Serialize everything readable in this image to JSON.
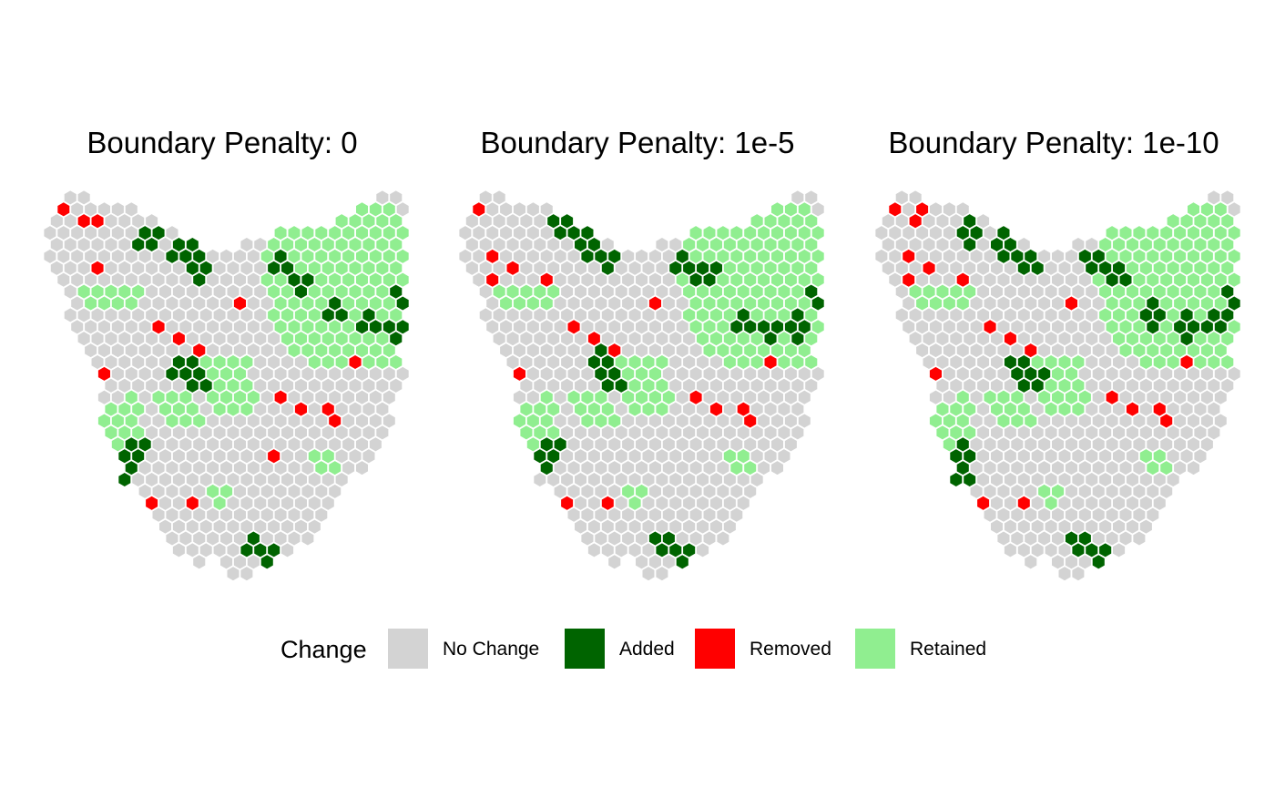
{
  "panels": [
    {
      "title": "Boundary Penalty: 0",
      "variant": 0
    },
    {
      "title": "Boundary Penalty: 1e-5",
      "variant": 1
    },
    {
      "title": "Boundary Penalty: 1e-10",
      "variant": 2
    }
  ],
  "legend": {
    "title": "Change",
    "items": [
      {
        "label": "No Change",
        "color": "#d3d3d3"
      },
      {
        "label": "Added",
        "color": "#006400"
      },
      {
        "label": "Removed",
        "color": "#ff0000"
      },
      {
        "label": "Retained",
        "color": "#90ee90"
      }
    ]
  },
  "colors": {
    "no_change": "#d3d3d3",
    "added": "#006400",
    "removed": "#ff0000",
    "retained": "#90ee90",
    "cell_border": "#ffffff"
  }
}
